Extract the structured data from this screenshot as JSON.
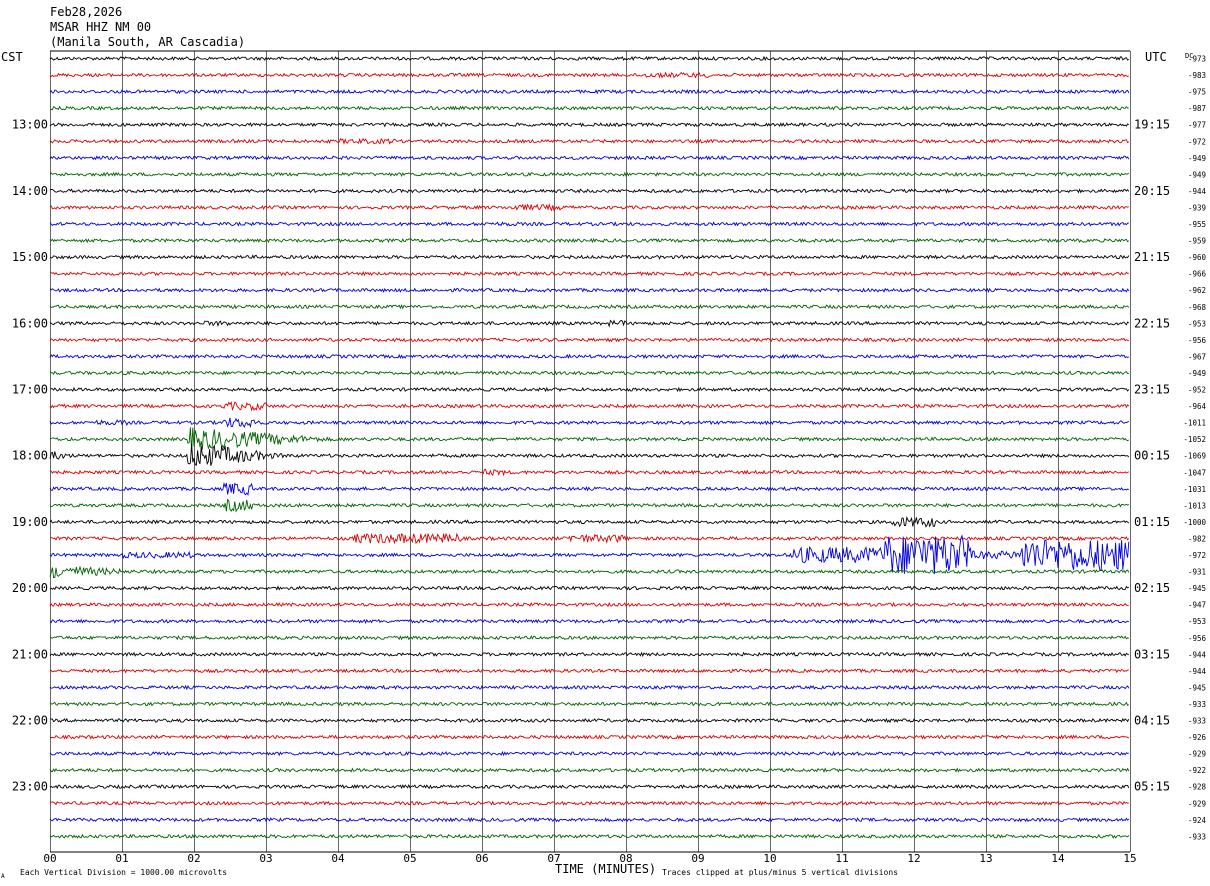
{
  "header": {
    "date": "Feb28,2026",
    "station": "MSAR HHZ NM 00",
    "location": "(Manila South, AR Cascadia)"
  },
  "left_tz": "CST",
  "right_tz": "UTC",
  "dc_label": "DC",
  "footer": {
    "x_axis_title": "TIME (MINUTES)",
    "scale_note": "Each Vertical Division = 1000.00 microvolts",
    "clip_note": "Traces clipped at plus/minus 5 vertical divisions",
    "corner_mark": "A"
  },
  "colors": {
    "background": "#ffffff",
    "grid": "#000000",
    "trace_cycle": [
      "#000000",
      "#e00000",
      "#0000e0",
      "#006400"
    ]
  },
  "chart_data": {
    "type": "line",
    "x_range": [
      0,
      15
    ],
    "x_ticks": [
      "00",
      "01",
      "02",
      "03",
      "04",
      "05",
      "06",
      "07",
      "08",
      "09",
      "10",
      "11",
      "12",
      "13",
      "14",
      "15"
    ],
    "rows_per_hour": 4,
    "minutes_per_row": 15,
    "left_hour_labels": [
      "13:00",
      "14:00",
      "15:00",
      "16:00",
      "17:00",
      "18:00",
      "19:00",
      "20:00",
      "21:00",
      "22:00",
      "23:00"
    ],
    "right_hour_labels": [
      "19:15",
      "20:15",
      "21:15",
      "22:15",
      "23:15",
      "00:15",
      "01:15",
      "02:15",
      "03:15",
      "04:15",
      "05:15"
    ],
    "dc_offsets": [
      -973,
      -983,
      -975,
      -987,
      -977,
      -972,
      -949,
      -949,
      -944,
      -939,
      -955,
      -959,
      -960,
      -966,
      -962,
      -968,
      -953,
      -956,
      -967,
      -949,
      -952,
      -964,
      -1011,
      -1052,
      -1069,
      -1047,
      -1031,
      -1013,
      -1000,
      -982,
      -972,
      -931,
      -945,
      -947,
      -953,
      -956,
      -944,
      -944,
      -945,
      -933,
      -933,
      -926,
      -929,
      -922,
      -928,
      -929,
      -924,
      -933
    ],
    "events": [
      {
        "row": 1,
        "start": 8.2,
        "end": 9.2,
        "amp": 2.5,
        "decay": false
      },
      {
        "row": 5,
        "start": 4.0,
        "end": 4.8,
        "amp": 2.5,
        "decay": false
      },
      {
        "row": 9,
        "start": 6.4,
        "end": 7.1,
        "amp": 3,
        "decay": false
      },
      {
        "row": 10,
        "start": 6.0,
        "end": 6.5,
        "amp": 2,
        "decay": false
      },
      {
        "row": 16,
        "start": 7.7,
        "end": 8.0,
        "amp": 3,
        "decay": false
      },
      {
        "row": 16,
        "start": 2.1,
        "end": 2.5,
        "amp": 2.5,
        "decay": false
      },
      {
        "row": 21,
        "start": 2.4,
        "end": 3.0,
        "amp": 4,
        "decay": false
      },
      {
        "row": 22,
        "start": 0.6,
        "end": 1.1,
        "amp": 2.5,
        "decay": false
      },
      {
        "row": 22,
        "start": 2.4,
        "end": 2.9,
        "amp": 5,
        "decay": false
      },
      {
        "row": 23,
        "start": 1.9,
        "end": 4.2,
        "amp": 12,
        "decay": true
      },
      {
        "row": 24,
        "start": 0.0,
        "end": 0.5,
        "amp": 5,
        "decay": true
      },
      {
        "row": 24,
        "start": 1.9,
        "end": 3.4,
        "amp": 14,
        "decay": true
      },
      {
        "row": 25,
        "start": 6.0,
        "end": 6.3,
        "amp": 3,
        "decay": false
      },
      {
        "row": 26,
        "start": 2.4,
        "end": 2.8,
        "amp": 6,
        "decay": false
      },
      {
        "row": 27,
        "start": 2.4,
        "end": 2.8,
        "amp": 6,
        "decay": false
      },
      {
        "row": 28,
        "start": 11.7,
        "end": 12.3,
        "amp": 5,
        "decay": false
      },
      {
        "row": 29,
        "start": 4.2,
        "end": 5.7,
        "amp": 5,
        "decay": false
      },
      {
        "row": 29,
        "start": 7.2,
        "end": 8.0,
        "amp": 4,
        "decay": false
      },
      {
        "row": 30,
        "start": 1.0,
        "end": 2.0,
        "amp": 3,
        "decay": false
      },
      {
        "row": 30,
        "start": 10.3,
        "end": 11.6,
        "amp": 8,
        "decay": false
      },
      {
        "row": 30,
        "start": 11.6,
        "end": 12.8,
        "amp": 20,
        "decay": false
      },
      {
        "row": 30,
        "start": 12.8,
        "end": 13.5,
        "amp": 4,
        "decay": false
      },
      {
        "row": 30,
        "start": 13.5,
        "end": 15.0,
        "amp": 16,
        "decay": false
      },
      {
        "row": 31,
        "start": 0.0,
        "end": 1.5,
        "amp": 7,
        "decay": true
      }
    ]
  }
}
